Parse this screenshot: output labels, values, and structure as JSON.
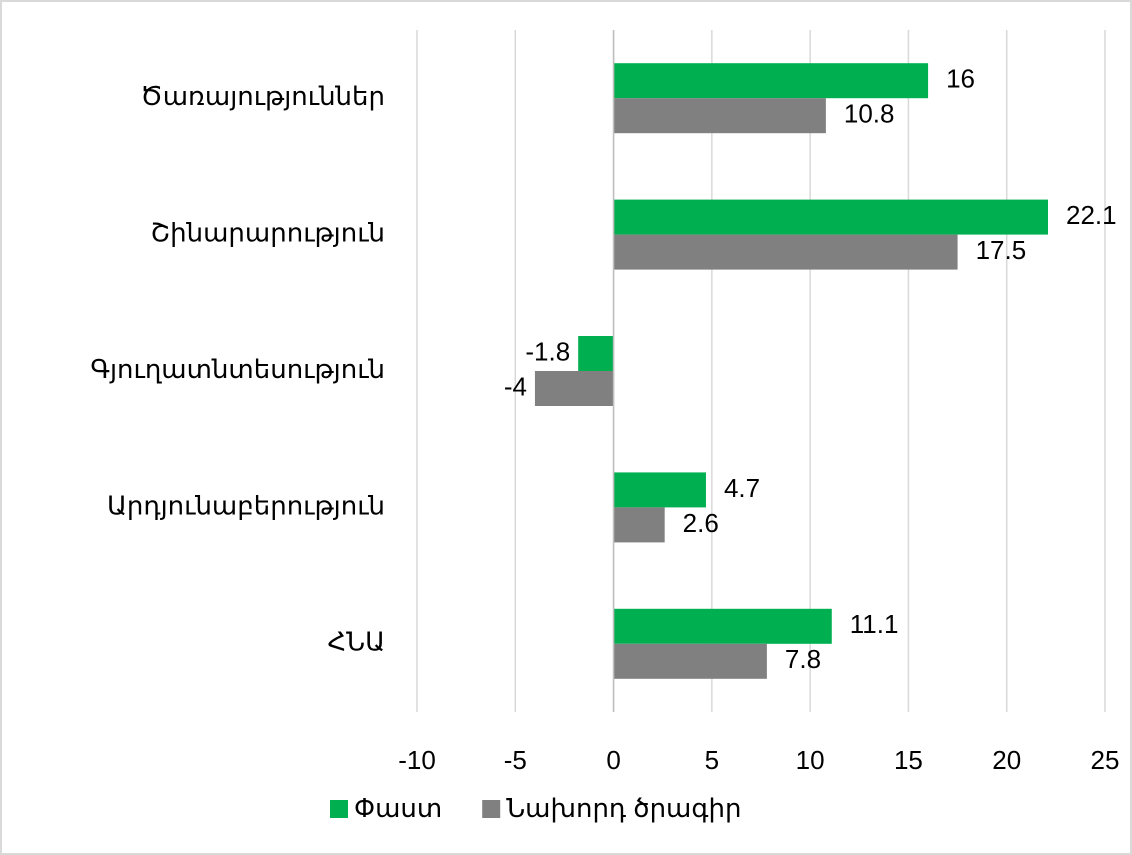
{
  "chart_data": {
    "type": "bar",
    "orientation": "horizontal",
    "categories": [
      "Ծառայություններ",
      "Շինարարություն",
      "Գյուղատնտեսություն",
      "Արդյունաբերություն",
      "ՀՆԱ"
    ],
    "series": [
      {
        "name": "Փաստ",
        "color": "#00b050",
        "values": [
          16,
          22.1,
          -1.8,
          4.7,
          11.1
        ]
      },
      {
        "name": "Նախորդ ծրագիր",
        "color": "#808080",
        "values": [
          10.8,
          17.5,
          -4,
          2.6,
          7.8
        ]
      }
    ],
    "xlim": [
      -10,
      25
    ],
    "xticks": [
      -10,
      -5,
      0,
      5,
      10,
      15,
      20,
      25
    ],
    "grid": true,
    "legend": "bottom"
  }
}
